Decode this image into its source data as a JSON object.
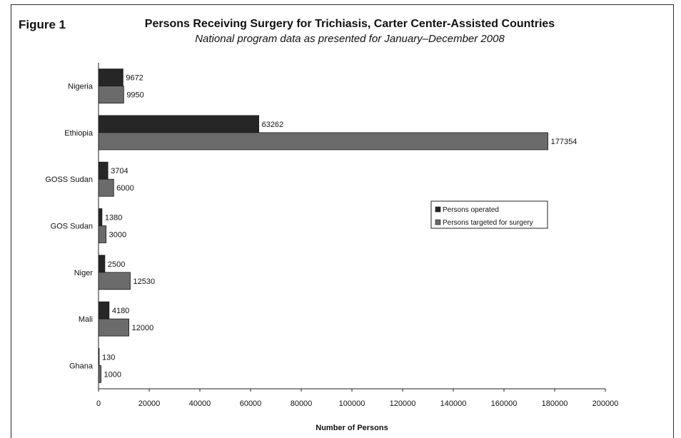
{
  "figure_label": "Figure 1",
  "title": "Persons Receiving Surgery for Trichiasis, Carter Center-Assisted Countries",
  "subtitle": "National program data as presented for January–December 2008",
  "colors": {
    "operated": "#262626",
    "targeted": "#6b6b6b",
    "axis": "#222222"
  },
  "chart_data": {
    "type": "bar",
    "orientation": "horizontal",
    "categories": [
      "Nigeria",
      "Ethiopia",
      "GOSS Sudan",
      "GOS Sudan",
      "Niger",
      "Mali",
      "Ghana"
    ],
    "series": [
      {
        "name": "Persons operated",
        "values": [
          9672,
          63262,
          3704,
          1380,
          2500,
          4180,
          130
        ]
      },
      {
        "name": "Persons targeted for surgery",
        "values": [
          9950,
          177354,
          6000,
          3000,
          12530,
          12000,
          1000
        ]
      }
    ],
    "xlabel": "Number of Persons",
    "ylabel": "",
    "xlim": [
      0,
      200000
    ],
    "xticks": [
      "0",
      "20000",
      "40000",
      "60000",
      "80000",
      "100000",
      "120000",
      "140000",
      "160000",
      "180000",
      "200000"
    ],
    "grid": false,
    "legend_position": "right"
  }
}
